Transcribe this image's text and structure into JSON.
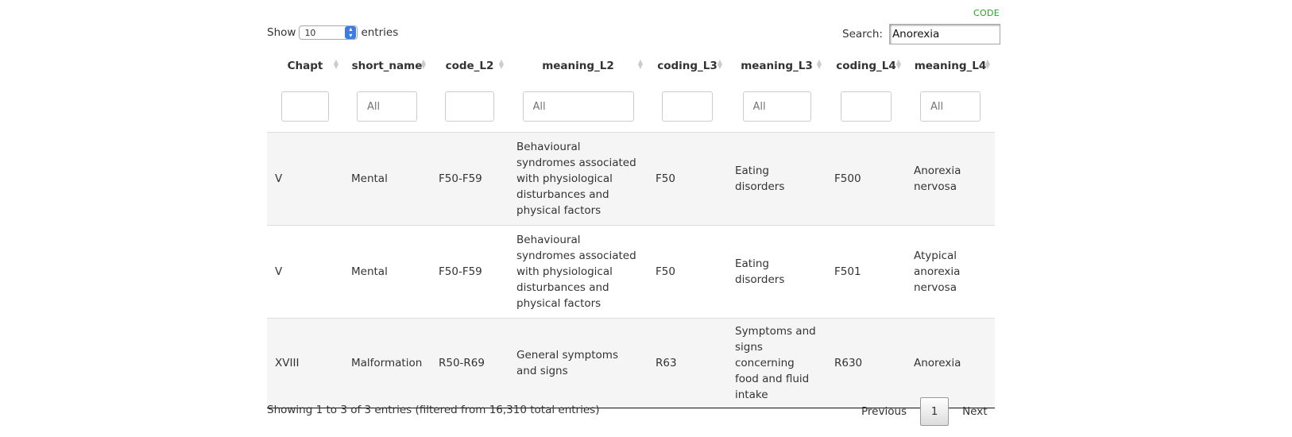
{
  "code_link": "CODE",
  "length_menu": {
    "show_label": "Show",
    "value": "10",
    "entries_label": "entries"
  },
  "search": {
    "label": "Search:",
    "value": "Anorexia"
  },
  "columns": [
    "Chapt",
    "short_name",
    "code_L2",
    "meaning_L2",
    "coding_L3",
    "meaning_L3",
    "coding_L4",
    "meaning_L4"
  ],
  "filters": {
    "placeholders": [
      "",
      "All",
      "",
      "All",
      "",
      "All",
      "",
      "All"
    ]
  },
  "rows": [
    [
      "V",
      "Mental",
      "F50-F59",
      "Behavioural syndromes associated with physiological disturbances and physical factors",
      "F50",
      "Eating disorders",
      "F500",
      "Anorexia nervosa"
    ],
    [
      "V",
      "Mental",
      "F50-F59",
      "Behavioural syndromes associated with physiological disturbances and physical factors",
      "F50",
      "Eating disorders",
      "F501",
      "Atypical anorexia nervosa"
    ],
    [
      "XVIII",
      "Malformation",
      "R50-R69",
      "General symptoms and signs",
      "R63",
      "Symptoms and signs concerning food and fluid intake",
      "R630",
      "Anorexia"
    ]
  ],
  "info": "Showing 1 to 3 of 3 entries (filtered from 16,310 total entries)",
  "pagination": {
    "previous": "Previous",
    "current": "1",
    "next": "Next"
  }
}
